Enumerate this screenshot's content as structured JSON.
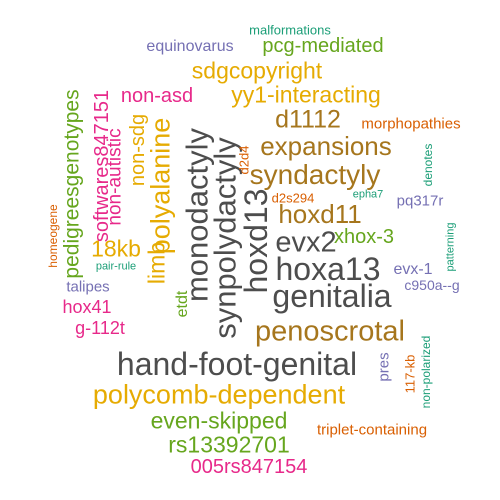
{
  "words": {
    "malformations": "malformations",
    "equinovarus": "equinovarus",
    "pcg_mediated": "pcg-mediated",
    "sdgcopyright": "sdgcopyright",
    "pedigreesgenotypes": "pedigreesgenotypes",
    "softwares847151": "softwares847151",
    "non_asd": "non-asd",
    "yy1_interacting": "yy1-interacting",
    "d1112": "d1112",
    "morphopathies": "morphopathies",
    "non_autistic": "non-autistic",
    "non_sdg": "non-sdg",
    "expansions": "expansions",
    "homeogene": "homeogene",
    "polyalanine": "polyalanine",
    "monodactyly": "monodactyly",
    "synpolydactyly": "synpolydactyly",
    "hoxd13": "hoxd13",
    "d2d4": "d2d4",
    "syndactyly": "syndactyly",
    "denotes": "denotes",
    "limb": "limb",
    "d2s294": "d2s294",
    "epha7": "epha7",
    "pq317r": "pq317r",
    "hoxd11": "hoxd11",
    "xhox_3": "xhox-3",
    "patterning": "patterning",
    "evx2": "evx2",
    "kb18": "18kb",
    "hoxa13": "hoxa13",
    "pair_rule": "pair-rule",
    "evx_1": "evx-1",
    "talipes": "talipes",
    "c950a_g": "c950a--g",
    "genitalia": "genitalia",
    "hox41": "hox41",
    "etdt": "etdt",
    "g_112t": "g-112t",
    "penoscrotal": "penoscrotal",
    "pres": "pres",
    "kb117": "117-kb",
    "non_polarized": "non-polarized",
    "hand_foot_genital": "hand-foot-genital",
    "polycomb_dependent": "polycomb-dependent",
    "even_skipped": "even-skipped",
    "triplet_containing": "triplet-containing",
    "rs13392701": "rs13392701",
    "rs847154": "005rs847154"
  },
  "colors": {
    "dark": "#4d4d4d",
    "brown": "#a6761d",
    "gold": "#e6ab02",
    "green": "#66a61e",
    "pink": "#e7298a",
    "purple": "#7570b3",
    "orange": "#d95f02",
    "teal": "#1b9e77"
  }
}
